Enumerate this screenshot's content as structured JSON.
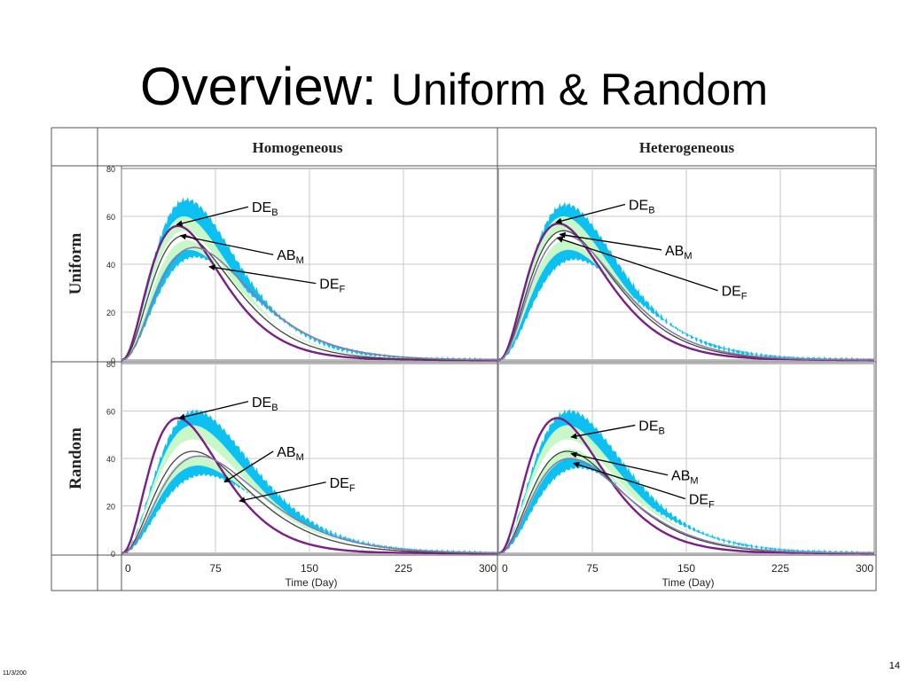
{
  "slide": {
    "title_main": "Overview:",
    "title_sub": "Uniform & Random",
    "page_number": "14",
    "footer_date": "11/3/200"
  },
  "table": {
    "col_headers": [
      "Homogeneous",
      "Heterogeneous"
    ],
    "row_headers": [
      "Uniform",
      "Random"
    ],
    "xlabel": "Time (Day)",
    "x_ticks": [
      0,
      75,
      150,
      225,
      300
    ],
    "y_ticks": [
      0,
      20,
      40,
      60,
      80
    ]
  },
  "colors": {
    "outer_band": "#0cc0f2",
    "mid_band": "#c8f7c8",
    "de_b_line": "#7b1f86",
    "ab_m_line": "#444444",
    "de_f_line": "#8a7aa8"
  },
  "chart_data": [
    {
      "type": "area",
      "panel": "Homogeneous / Uniform",
      "xlabel": "",
      "ylabel": "",
      "xlim": [
        0,
        300
      ],
      "ylim": [
        0,
        80
      ],
      "series": [
        {
          "name": "DE",
          "sub": "B",
          "peak_x": 45,
          "peak_y": 56
        },
        {
          "name": "AB",
          "sub": "M",
          "peak_x": 50,
          "peak_y": 52
        },
        {
          "name": "DE",
          "sub": "F",
          "peak_x": 58,
          "peak_y": 47
        }
      ],
      "bands": {
        "outer": {
          "low_peak": 43,
          "high_peak": 67
        },
        "mid": {
          "low_peak": 46,
          "high_peak": 60
        }
      },
      "annotations": [
        {
          "name": "DE",
          "sub": "B",
          "x": 104,
          "y": 64,
          "target_x": 44,
          "target_y": 56.5
        },
        {
          "name": "AB",
          "sub": "M",
          "x": 124,
          "y": 44,
          "target_x": 47,
          "target_y": 52
        },
        {
          "name": "DE",
          "sub": "F",
          "x": 158,
          "y": 32,
          "target_x": 70,
          "target_y": 39
        }
      ]
    },
    {
      "type": "area",
      "panel": "Heterogeneous / Uniform",
      "xlabel": "",
      "ylabel": "",
      "xlim": [
        0,
        300
      ],
      "ylim": [
        0,
        80
      ],
      "series": [
        {
          "name": "DE",
          "sub": "B",
          "peak_x": 48,
          "peak_y": 57
        },
        {
          "name": "AB",
          "sub": "M",
          "peak_x": 52,
          "peak_y": 54
        },
        {
          "name": "DE",
          "sub": "F",
          "peak_x": 54,
          "peak_y": 52
        }
      ],
      "bands": {
        "outer": {
          "low_peak": 42,
          "high_peak": 65
        },
        "mid": {
          "low_peak": 46,
          "high_peak": 60
        }
      },
      "annotations": [
        {
          "name": "DE",
          "sub": "B",
          "x": 104,
          "y": 65,
          "target_x": 46,
          "target_y": 57.5
        },
        {
          "name": "AB",
          "sub": "M",
          "x": 133,
          "y": 46,
          "target_x": 49,
          "target_y": 52.5
        },
        {
          "name": "DE",
          "sub": "F",
          "x": 178,
          "y": 29,
          "target_x": 47,
          "target_y": 51
        }
      ]
    },
    {
      "type": "area",
      "panel": "Homogeneous / Random",
      "xlabel": "Time (Day)",
      "ylabel": "",
      "xlim": [
        0,
        300
      ],
      "ylim": [
        0,
        80
      ],
      "series": [
        {
          "name": "DE",
          "sub": "B",
          "peak_x": 45,
          "peak_y": 57
        },
        {
          "name": "AB",
          "sub": "M",
          "peak_x": 57,
          "peak_y": 43
        },
        {
          "name": "DE",
          "sub": "F",
          "peak_x": 62,
          "peak_y": 41
        }
      ],
      "bands": {
        "outer": {
          "low_peak": 33,
          "high_peak": 60
        },
        "mid": {
          "low_peak": 37,
          "high_peak": 54
        }
      },
      "annotations": [
        {
          "name": "DE",
          "sub": "B",
          "x": 104,
          "y": 64,
          "target_x": 46,
          "target_y": 57
        },
        {
          "name": "AB",
          "sub": "M",
          "x": 124,
          "y": 43,
          "target_x": 82,
          "target_y": 30
        },
        {
          "name": "DE",
          "sub": "F",
          "x": 166,
          "y": 30,
          "target_x": 94,
          "target_y": 22
        }
      ]
    },
    {
      "type": "area",
      "panel": "Heterogeneous / Random",
      "xlabel": "Time (Day)",
      "ylabel": "",
      "xlim": [
        0,
        300
      ],
      "ylim": [
        0,
        80
      ],
      "series": [
        {
          "name": "DE",
          "sub": "B",
          "peak_x": 47,
          "peak_y": 57
        },
        {
          "name": "AB",
          "sub": "M",
          "peak_x": 55,
          "peak_y": 43
        },
        {
          "name": "DE",
          "sub": "F",
          "peak_x": 57,
          "peak_y": 40
        }
      ],
      "bands": {
        "outer": {
          "low_peak": 36,
          "high_peak": 60
        },
        "mid": {
          "low_peak": 40,
          "high_peak": 54
        }
      },
      "annotations": [
        {
          "name": "DE",
          "sub": "B",
          "x": 112,
          "y": 54,
          "target_x": 58,
          "target_y": 49
        },
        {
          "name": "AB",
          "sub": "M",
          "x": 138,
          "y": 33,
          "target_x": 58,
          "target_y": 42
        },
        {
          "name": "DE",
          "sub": "F",
          "x": 152,
          "y": 23,
          "target_x": 60,
          "target_y": 38
        }
      ]
    }
  ]
}
